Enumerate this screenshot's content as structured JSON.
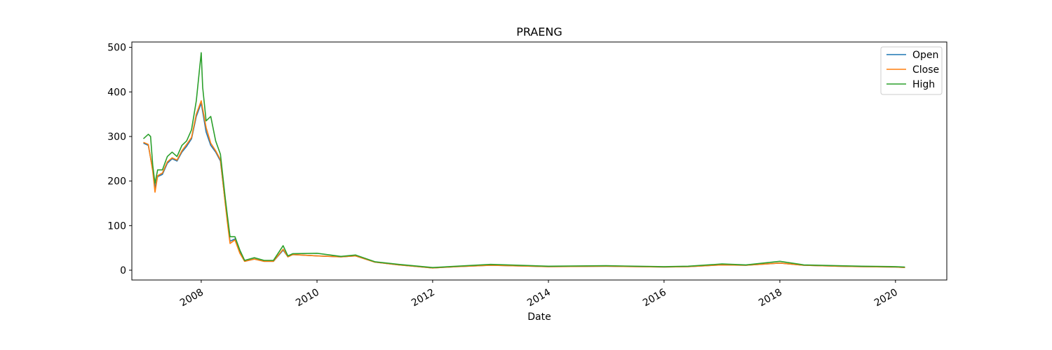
{
  "chart_data": {
    "type": "line",
    "title": "PRAENG",
    "xlabel": "Date",
    "ylabel": "",
    "x_axis": {
      "type": "date",
      "range": [
        "2006-10-20",
        "2020-11-20"
      ],
      "ticks": [
        "2008",
        "2010",
        "2012",
        "2014",
        "2016",
        "2018",
        "2020"
      ]
    },
    "y_axis": {
      "range": [
        -22,
        512
      ],
      "ticks": [
        0,
        100,
        200,
        300,
        400,
        500
      ]
    },
    "grid": false,
    "legend": {
      "placement": "upper-right",
      "entries": [
        "Open",
        "Close",
        "High"
      ]
    },
    "series": [
      {
        "name": "Open",
        "color": "#1f77b4",
        "points": [
          [
            "2007-01-01",
            285
          ],
          [
            "2007-02-01",
            280
          ],
          [
            "2007-03-01",
            225
          ],
          [
            "2007-03-15",
            185
          ],
          [
            "2007-04-01",
            210
          ],
          [
            "2007-05-01",
            215
          ],
          [
            "2007-06-01",
            240
          ],
          [
            "2007-07-01",
            250
          ],
          [
            "2007-08-01",
            245
          ],
          [
            "2007-09-01",
            265
          ],
          [
            "2007-10-01",
            278
          ],
          [
            "2007-11-01",
            295
          ],
          [
            "2007-12-01",
            345
          ],
          [
            "2008-01-01",
            375
          ],
          [
            "2008-02-01",
            310
          ],
          [
            "2008-03-01",
            280
          ],
          [
            "2008-04-01",
            265
          ],
          [
            "2008-05-01",
            245
          ],
          [
            "2008-06-01",
            150
          ],
          [
            "2008-06-15",
            110
          ],
          [
            "2008-07-01",
            65
          ],
          [
            "2008-08-01",
            70
          ],
          [
            "2008-09-01",
            40
          ],
          [
            "2008-10-01",
            20
          ],
          [
            "2008-12-01",
            25
          ],
          [
            "2009-02-01",
            20
          ],
          [
            "2009-04-01",
            20
          ],
          [
            "2009-06-01",
            45
          ],
          [
            "2009-07-01",
            30
          ],
          [
            "2009-08-01",
            35
          ],
          [
            "2010-01-01",
            32
          ],
          [
            "2010-06-01",
            30
          ],
          [
            "2010-09-01",
            32
          ],
          [
            "2011-01-01",
            18
          ],
          [
            "2011-06-01",
            12
          ],
          [
            "2012-01-01",
            5
          ],
          [
            "2012-06-01",
            8
          ],
          [
            "2013-01-01",
            11
          ],
          [
            "2014-01-01",
            8
          ],
          [
            "2015-01-01",
            9
          ],
          [
            "2016-01-01",
            7
          ],
          [
            "2016-06-01",
            8
          ],
          [
            "2017-01-01",
            12
          ],
          [
            "2017-06-01",
            11
          ],
          [
            "2018-01-01",
            16
          ],
          [
            "2018-06-01",
            11
          ],
          [
            "2019-01-01",
            9
          ],
          [
            "2019-06-01",
            8
          ],
          [
            "2020-01-01",
            7
          ],
          [
            "2020-03-01",
            6
          ]
        ]
      },
      {
        "name": "Close",
        "color": "#ff7f0e",
        "points": [
          [
            "2007-01-01",
            287
          ],
          [
            "2007-02-01",
            282
          ],
          [
            "2007-03-01",
            222
          ],
          [
            "2007-03-15",
            175
          ],
          [
            "2007-04-01",
            212
          ],
          [
            "2007-05-01",
            218
          ],
          [
            "2007-06-01",
            243
          ],
          [
            "2007-07-01",
            252
          ],
          [
            "2007-08-01",
            247
          ],
          [
            "2007-09-01",
            268
          ],
          [
            "2007-10-01",
            282
          ],
          [
            "2007-11-01",
            298
          ],
          [
            "2007-12-01",
            350
          ],
          [
            "2008-01-01",
            380
          ],
          [
            "2008-02-01",
            320
          ],
          [
            "2008-03-01",
            285
          ],
          [
            "2008-04-01",
            268
          ],
          [
            "2008-05-01",
            248
          ],
          [
            "2008-06-01",
            148
          ],
          [
            "2008-06-15",
            105
          ],
          [
            "2008-07-01",
            60
          ],
          [
            "2008-08-01",
            68
          ],
          [
            "2008-09-01",
            38
          ],
          [
            "2008-10-01",
            20
          ],
          [
            "2008-12-01",
            25
          ],
          [
            "2009-02-01",
            20
          ],
          [
            "2009-04-01",
            20
          ],
          [
            "2009-06-01",
            47
          ],
          [
            "2009-07-01",
            30
          ],
          [
            "2009-08-01",
            35
          ],
          [
            "2010-01-01",
            32
          ],
          [
            "2010-06-01",
            30
          ],
          [
            "2010-09-01",
            32
          ],
          [
            "2011-01-01",
            18
          ],
          [
            "2011-06-01",
            12
          ],
          [
            "2012-01-01",
            5
          ],
          [
            "2012-06-01",
            8
          ],
          [
            "2013-01-01",
            11
          ],
          [
            "2014-01-01",
            8
          ],
          [
            "2015-01-01",
            9
          ],
          [
            "2016-01-01",
            7
          ],
          [
            "2016-06-01",
            8
          ],
          [
            "2017-01-01",
            12
          ],
          [
            "2017-06-01",
            11
          ],
          [
            "2018-01-01",
            16
          ],
          [
            "2018-06-01",
            11
          ],
          [
            "2019-01-01",
            9
          ],
          [
            "2019-06-01",
            8
          ],
          [
            "2020-01-01",
            7
          ],
          [
            "2020-03-01",
            6
          ]
        ]
      },
      {
        "name": "High",
        "color": "#2ca02c",
        "points": [
          [
            "2007-01-01",
            295
          ],
          [
            "2007-02-01",
            305
          ],
          [
            "2007-02-15",
            300
          ],
          [
            "2007-03-01",
            235
          ],
          [
            "2007-03-15",
            195
          ],
          [
            "2007-04-01",
            225
          ],
          [
            "2007-05-01",
            225
          ],
          [
            "2007-06-01",
            255
          ],
          [
            "2007-07-01",
            265
          ],
          [
            "2007-08-01",
            255
          ],
          [
            "2007-09-01",
            280
          ],
          [
            "2007-10-01",
            290
          ],
          [
            "2007-11-01",
            315
          ],
          [
            "2007-12-01",
            380
          ],
          [
            "2008-01-01",
            488
          ],
          [
            "2008-01-10",
            410
          ],
          [
            "2008-02-01",
            335
          ],
          [
            "2008-03-01",
            345
          ],
          [
            "2008-04-01",
            290
          ],
          [
            "2008-05-01",
            260
          ],
          [
            "2008-06-01",
            160
          ],
          [
            "2008-06-15",
            120
          ],
          [
            "2008-07-01",
            75
          ],
          [
            "2008-08-01",
            75
          ],
          [
            "2008-09-01",
            45
          ],
          [
            "2008-10-01",
            22
          ],
          [
            "2008-12-01",
            28
          ],
          [
            "2009-02-01",
            22
          ],
          [
            "2009-04-01",
            22
          ],
          [
            "2009-06-01",
            55
          ],
          [
            "2009-07-01",
            32
          ],
          [
            "2009-08-01",
            37
          ],
          [
            "2010-01-01",
            38
          ],
          [
            "2010-06-01",
            31
          ],
          [
            "2010-09-01",
            34
          ],
          [
            "2011-01-01",
            19
          ],
          [
            "2011-06-01",
            13
          ],
          [
            "2012-01-01",
            6
          ],
          [
            "2012-06-01",
            9
          ],
          [
            "2013-01-01",
            13
          ],
          [
            "2014-01-01",
            9
          ],
          [
            "2015-01-01",
            10
          ],
          [
            "2016-01-01",
            8
          ],
          [
            "2016-06-01",
            9
          ],
          [
            "2017-01-01",
            14
          ],
          [
            "2017-06-01",
            12
          ],
          [
            "2018-01-01",
            20
          ],
          [
            "2018-06-01",
            12
          ],
          [
            "2019-01-01",
            10
          ],
          [
            "2019-06-01",
            9
          ],
          [
            "2020-01-01",
            8
          ],
          [
            "2020-03-01",
            7
          ]
        ]
      }
    ]
  }
}
